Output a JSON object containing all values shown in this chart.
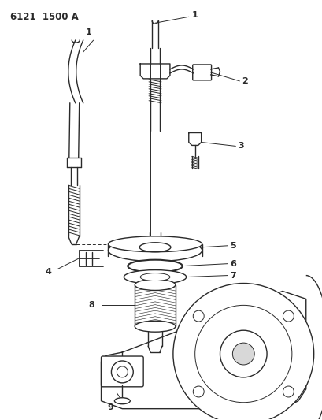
{
  "title": "6121  1500 A",
  "bg_color": "#ffffff",
  "line_color": "#2a2a2a",
  "label_color": "#2a2a2a",
  "figsize": [
    4.1,
    5.33
  ],
  "dpi": 100
}
